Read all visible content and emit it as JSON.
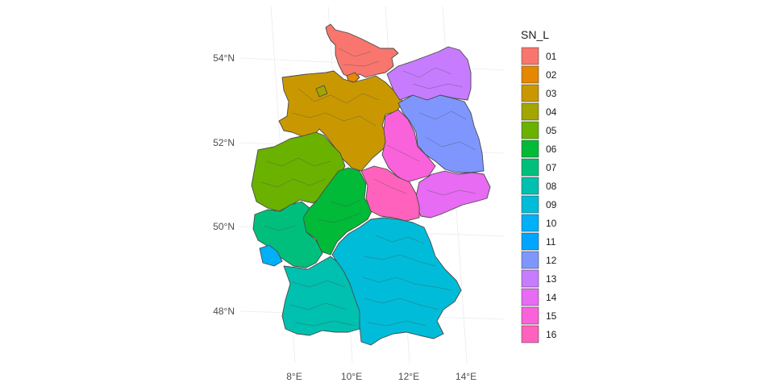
{
  "map": {
    "legend": {
      "title": "SN_L",
      "entries": [
        {
          "code": "01",
          "color": "#F8766D"
        },
        {
          "code": "02",
          "color": "#E58700"
        },
        {
          "code": "03",
          "color": "#C99800"
        },
        {
          "code": "04",
          "color": "#A3A500"
        },
        {
          "code": "05",
          "color": "#6BB100"
        },
        {
          "code": "06",
          "color": "#00BA38"
        },
        {
          "code": "07",
          "color": "#00BF7D"
        },
        {
          "code": "08",
          "color": "#00C0AF"
        },
        {
          "code": "09",
          "color": "#00BCD8"
        },
        {
          "code": "10",
          "color": "#00B0F6"
        },
        {
          "code": "11",
          "color": "#00A5FF"
        },
        {
          "code": "12",
          "color": "#7F96FF"
        },
        {
          "code": "13",
          "color": "#C77CFF"
        },
        {
          "code": "14",
          "color": "#E76BF3"
        },
        {
          "code": "15",
          "color": "#FA62DB"
        },
        {
          "code": "16",
          "color": "#FF62BC"
        }
      ]
    },
    "lat_labels": [
      "54°N",
      "52°N",
      "50°N",
      "48°N"
    ],
    "lon_labels": [
      "8°E",
      "10°E",
      "12°E",
      "14°E"
    ]
  }
}
